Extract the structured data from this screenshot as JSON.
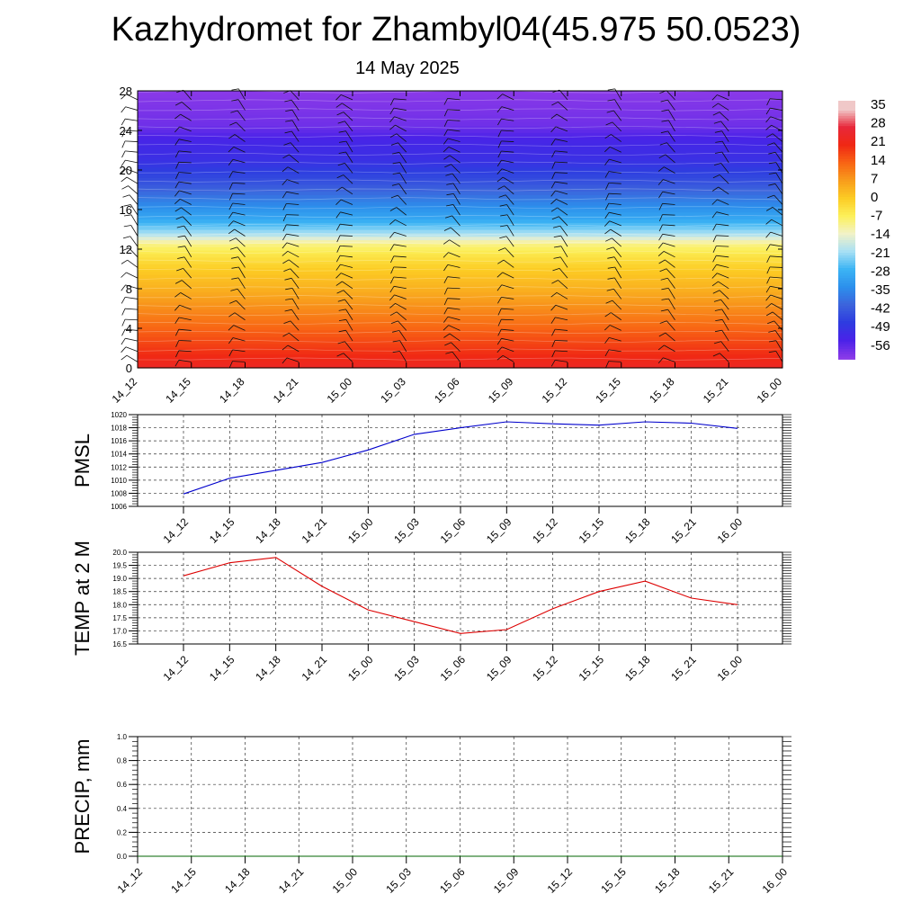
{
  "header": {
    "title": "Kazhydromet for Zhambyl04(45.975 50.0523)",
    "subtitle": "14 May 2025"
  },
  "chart_data": [
    {
      "type": "heatmap",
      "title": "Kazhydromet for Zhambyl04(45.975 50.0523)",
      "subtitle": "14 May 2025",
      "x_ticks": [
        "14_12",
        "14_15",
        "14_18",
        "14_21",
        "15_00",
        "15_03",
        "15_06",
        "15_09",
        "15_12",
        "15_15",
        "15_18",
        "15_21",
        "16_00"
      ],
      "y_ticks": [
        0,
        4,
        8,
        12,
        16,
        20,
        24,
        28
      ],
      "ylim": [
        0,
        28
      ],
      "colorbar_labels": [
        "35",
        "28",
        "21",
        "14",
        "7",
        "0",
        "-7",
        "-14",
        "-21",
        "-28",
        "-35",
        "-42",
        "-49",
        "-56"
      ],
      "color_stops": [
        {
          "v": 35,
          "c": "#f0c8c8"
        },
        {
          "v": 28,
          "c": "#e8283a"
        },
        {
          "v": 21,
          "c": "#f02814"
        },
        {
          "v": 14,
          "c": "#f86414"
        },
        {
          "v": 7,
          "c": "#f89c1c"
        },
        {
          "v": 0,
          "c": "#fccc24"
        },
        {
          "v": -7,
          "c": "#fcf05a"
        },
        {
          "v": -14,
          "c": "#f2f2c8"
        },
        {
          "v": -21,
          "c": "#a8e0f4"
        },
        {
          "v": -28,
          "c": "#3cb4f4"
        },
        {
          "v": -35,
          "c": "#2c90ec"
        },
        {
          "v": -42,
          "c": "#3c64dc"
        },
        {
          "v": -49,
          "c": "#2e3ce0"
        },
        {
          "v": -56,
          "c": "#4a22e8"
        },
        {
          "v": -63,
          "c": "#8a3ae8"
        }
      ],
      "temp_profile": [
        {
          "h": 0,
          "t": 24
        },
        {
          "h": 2,
          "t": 19
        },
        {
          "h": 4,
          "t": 14
        },
        {
          "h": 6,
          "t": 9
        },
        {
          "h": 8,
          "t": 4
        },
        {
          "h": 10,
          "t": 0
        },
        {
          "h": 11.5,
          "t": -5
        },
        {
          "h": 12.6,
          "t": -10
        },
        {
          "h": 13.5,
          "t": -20
        },
        {
          "h": 15,
          "t": -30
        },
        {
          "h": 17,
          "t": -38
        },
        {
          "h": 19,
          "t": -46
        },
        {
          "h": 21,
          "t": -52
        },
        {
          "h": 23,
          "t": -55
        },
        {
          "h": 24.5,
          "t": -60
        },
        {
          "h": 28,
          "t": -63
        }
      ]
    },
    {
      "type": "line",
      "ylabel": "PMSL",
      "x": [
        "14_12",
        "14_15",
        "14_18",
        "14_21",
        "15_00",
        "15_03",
        "15_06",
        "15_09",
        "15_12",
        "15_15",
        "15_18",
        "15_21",
        "16_00"
      ],
      "series": [
        {
          "values": [
            1007.9,
            1010.3,
            1011.5,
            1012.7,
            1014.6,
            1017.0,
            1018.0,
            1018.9,
            1018.6,
            1018.4,
            1018.9,
            1018.7,
            1017.9
          ],
          "color": "#0000cc"
        }
      ],
      "ylim": [
        1006,
        1020
      ],
      "y_ticks": [
        1006,
        1008,
        1010,
        1012,
        1014,
        1016,
        1018,
        1020
      ],
      "grid": true
    },
    {
      "type": "line",
      "ylabel": "TEMP at 2 M",
      "x": [
        "14_12",
        "14_15",
        "14_18",
        "14_21",
        "15_00",
        "15_03",
        "15_06",
        "15_09",
        "15_12",
        "15_15",
        "15_18",
        "15_21",
        "16_00"
      ],
      "series": [
        {
          "values": [
            19.1,
            19.6,
            19.8,
            18.7,
            17.8,
            17.35,
            16.9,
            17.05,
            17.85,
            18.5,
            18.9,
            18.25,
            18.0
          ],
          "color": "#dd0000"
        }
      ],
      "ylim": [
        16.5,
        20.0
      ],
      "y_ticks": [
        "16.5",
        "17.0",
        "17.5",
        "18.0",
        "18.5",
        "19.0",
        "19.5",
        "20.0"
      ],
      "grid": true
    },
    {
      "type": "line",
      "ylabel": "PRECIP, mm",
      "x": [
        "14_12",
        "14_15",
        "14_18",
        "14_21",
        "15_00",
        "15_03",
        "15_06",
        "15_09",
        "15_12",
        "15_15",
        "15_18",
        "15_21",
        "16_00"
      ],
      "series": [
        {
          "values": [
            0,
            0,
            0,
            0,
            0,
            0,
            0,
            0,
            0,
            0,
            0,
            0,
            0
          ],
          "color": "#006600"
        }
      ],
      "ylim": [
        0.0,
        1.0
      ],
      "y_ticks": [
        "0.0",
        "0.2",
        "0.4",
        "0.6",
        "0.8",
        "1.0"
      ],
      "grid": true
    }
  ]
}
